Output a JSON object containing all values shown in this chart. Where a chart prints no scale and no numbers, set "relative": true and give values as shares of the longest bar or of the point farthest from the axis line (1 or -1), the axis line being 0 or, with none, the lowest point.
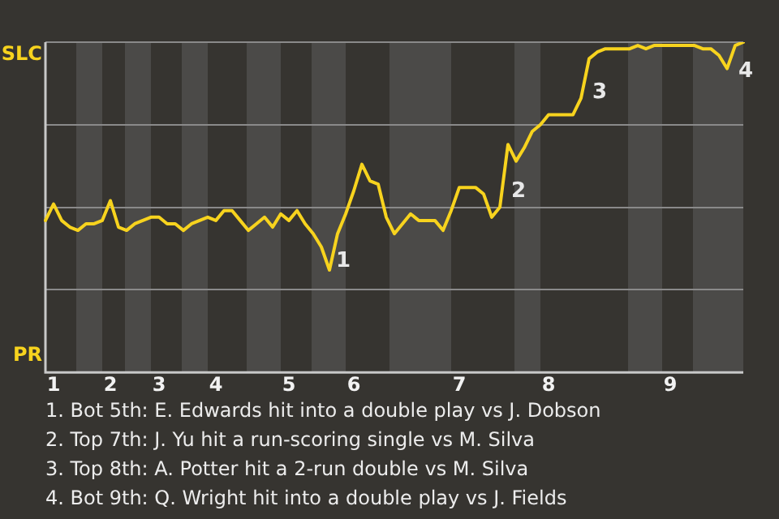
{
  "chart_data": {
    "type": "line",
    "relative": true,
    "categories": [
      null,
      "1",
      null,
      null,
      null,
      null,
      null,
      null,
      "2",
      null,
      null,
      null,
      null,
      null,
      "3",
      null,
      null,
      null,
      null,
      null,
      null,
      "4",
      null,
      null,
      null,
      null,
      null,
      null,
      null,
      null,
      "5",
      null,
      null,
      null,
      null,
      null,
      null,
      null,
      "6",
      null,
      null,
      null,
      null,
      null,
      null,
      null,
      null,
      null,
      null,
      null,
      null,
      "7",
      null,
      null,
      null,
      null,
      null,
      null,
      null,
      null,
      null,
      null,
      "8",
      null,
      null,
      null,
      null,
      null,
      null,
      null,
      null,
      null,
      null,
      null,
      null,
      null,
      null,
      "9",
      null,
      null,
      null,
      null,
      null,
      null,
      null,
      null,
      null
    ],
    "series": [
      {
        "color": "#f7d31e",
        "values": [
          0.46,
          0.51,
          0.46,
          0.44,
          0.43,
          0.45,
          0.45,
          0.46,
          0.52,
          0.44,
          0.43,
          0.45,
          0.46,
          0.47,
          0.47,
          0.45,
          0.45,
          0.43,
          0.45,
          0.46,
          0.47,
          0.46,
          0.49,
          0.49,
          0.46,
          0.43,
          0.45,
          0.47,
          0.44,
          0.48,
          0.46,
          0.49,
          0.45,
          0.42,
          0.38,
          0.31,
          0.42,
          0.48,
          0.55,
          0.63,
          0.58,
          0.57,
          0.47,
          0.42,
          0.45,
          0.48,
          0.46,
          0.46,
          0.46,
          0.43,
          0.49,
          0.56,
          0.56,
          0.56,
          0.54,
          0.47,
          0.5,
          0.69,
          0.64,
          0.68,
          0.73,
          0.75,
          0.78,
          0.78,
          0.78,
          0.78,
          0.83,
          0.95,
          0.97,
          0.98,
          0.98,
          0.98,
          0.98,
          0.99,
          0.98,
          0.99,
          0.99,
          0.99,
          0.99,
          0.99,
          0.99,
          0.98,
          0.98,
          0.96,
          0.92,
          0.99,
          1.0
        ]
      }
    ],
    "grid": "y",
    "legend": false,
    "marker": "none",
    "line_style": "solid",
    "annotations": [
      "SLC",
      "PR",
      "1",
      "2",
      "3",
      "4",
      "1. Bot 5th: E. Edwards hit into a double play vs J. Dobson",
      "2. Top 7th: J. Yu hit a run-scoring single vs M. Silva",
      "3. Top 8th: A. Potter hit a 2-run double vs M. Silva",
      "4. Bot 9th: Q. Wright hit into a double play vs J. Fields"
    ]
  }
}
